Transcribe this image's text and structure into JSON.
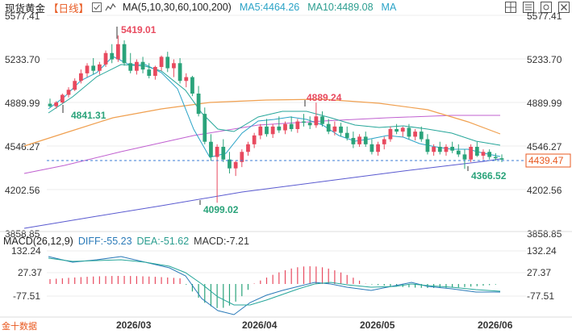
{
  "header": {
    "title": "现货黄金",
    "period": "【日线】",
    "ma_label": "MA(5,10,30,60,100,200)",
    "ma5": "MA5:4464.26",
    "ma10": "MA10:4489.08",
    "ma_extra": "MA"
  },
  "toolbar": {
    "icons": [
      "grid-icon",
      "list-icon",
      "settings-icon",
      "close-icon"
    ]
  },
  "price_axis": {
    "left_labels": [
      "5577.41",
      "5233.70",
      "4889.99",
      "4546.27",
      "4202.56",
      "3858.85"
    ],
    "right_labels": [
      "5577.41",
      "5233.70",
      "4889.99",
      "4546.27",
      "4202.56",
      "3858.85"
    ],
    "current_price": "4439.47"
  },
  "annotations": {
    "high": "5419.01",
    "mid_high": "4889.24",
    "low_left": "4841.31",
    "low_main": "4099.02",
    "low_recent": "4366.52"
  },
  "macd": {
    "title": "MACD(26,12,9)",
    "diff": "DIFF:-55.23",
    "dea": "DEA:-51.62",
    "macd": "MACD:-7.21",
    "left_labels": [
      "132.24",
      "27.37",
      "-77.51"
    ],
    "right_labels": [
      "132.24",
      "27.37",
      "-77.51"
    ]
  },
  "x_axis": {
    "labels": [
      "2026/03",
      "2026/04",
      "2026/05",
      "2026/06"
    ]
  },
  "watermark": "金十数据",
  "colors": {
    "up": "#e84a5f",
    "down": "#2aa37a",
    "ma5": "#2aa3c7",
    "ma10": "#26a69a",
    "ma_orange": "#f0a050",
    "ma_purple": "#c060d0",
    "ma_blue": "#5a5ad0",
    "accent": "#e8581f"
  },
  "chart_data": {
    "type": "candlestick",
    "ylim": [
      3858.85,
      5577.41
    ],
    "x_ticks": [
      "2026/03",
      "2026/04",
      "2026/05",
      "2026/06"
    ],
    "candles": [
      [
        4880,
        4920,
        4850,
        4860
      ],
      [
        4860,
        4900,
        4841,
        4890
      ],
      [
        4890,
        4960,
        4880,
        4950
      ],
      [
        4950,
        5010,
        4930,
        4990
      ],
      [
        4990,
        5080,
        4980,
        5060
      ],
      [
        5060,
        5150,
        5040,
        5120
      ],
      [
        5120,
        5200,
        5090,
        5180
      ],
      [
        5180,
        5240,
        5110,
        5140
      ],
      [
        5140,
        5210,
        5110,
        5190
      ],
      [
        5190,
        5300,
        5170,
        5280
      ],
      [
        5280,
        5350,
        5200,
        5230
      ],
      [
        5230,
        5419,
        5210,
        5350
      ],
      [
        5350,
        5380,
        5180,
        5200
      ],
      [
        5200,
        5280,
        5120,
        5140
      ],
      [
        5140,
        5230,
        5110,
        5210
      ],
      [
        5210,
        5250,
        5120,
        5150
      ],
      [
        5150,
        5200,
        5080,
        5100
      ],
      [
        5100,
        5180,
        5070,
        5170
      ],
      [
        5170,
        5260,
        5140,
        5250
      ],
      [
        5250,
        5290,
        5130,
        5160
      ],
      [
        5160,
        5230,
        5090,
        5200
      ],
      [
        5200,
        5240,
        5040,
        5060
      ],
      [
        5060,
        5120,
        5010,
        5090
      ],
      [
        5090,
        5100,
        4940,
        4960
      ],
      [
        4960,
        5020,
        4780,
        4800
      ],
      [
        4800,
        4850,
        4560,
        4580
      ],
      [
        4580,
        4640,
        4430,
        4460
      ],
      [
        4460,
        4560,
        4099,
        4540
      ],
      [
        4540,
        4600,
        4420,
        4440
      ],
      [
        4440,
        4500,
        4330,
        4370
      ],
      [
        4370,
        4430,
        4310,
        4420
      ],
      [
        4420,
        4520,
        4380,
        4500
      ],
      [
        4500,
        4580,
        4470,
        4560
      ],
      [
        4560,
        4650,
        4530,
        4630
      ],
      [
        4630,
        4720,
        4600,
        4700
      ],
      [
        4700,
        4760,
        4620,
        4640
      ],
      [
        4640,
        4720,
        4610,
        4700
      ],
      [
        4700,
        4780,
        4650,
        4670
      ],
      [
        4670,
        4740,
        4640,
        4720
      ],
      [
        4720,
        4780,
        4660,
        4680
      ],
      [
        4680,
        4760,
        4650,
        4740
      ],
      [
        4740,
        4800,
        4700,
        4730
      ],
      [
        4730,
        4780,
        4680,
        4710
      ],
      [
        4710,
        4889,
        4690,
        4780
      ],
      [
        4780,
        4820,
        4700,
        4720
      ],
      [
        4720,
        4760,
        4640,
        4660
      ],
      [
        4660,
        4740,
        4630,
        4700
      ],
      [
        4700,
        4730,
        4620,
        4650
      ],
      [
        4650,
        4700,
        4590,
        4610
      ],
      [
        4610,
        4660,
        4530,
        4560
      ],
      [
        4560,
        4640,
        4540,
        4620
      ],
      [
        4620,
        4660,
        4540,
        4560
      ],
      [
        4560,
        4600,
        4480,
        4500
      ],
      [
        4500,
        4580,
        4470,
        4560
      ],
      [
        4560,
        4620,
        4520,
        4600
      ],
      [
        4600,
        4700,
        4580,
        4680
      ],
      [
        4680,
        4720,
        4640,
        4660
      ],
      [
        4660,
        4700,
        4620,
        4690
      ],
      [
        4690,
        4720,
        4600,
        4620
      ],
      [
        4620,
        4680,
        4590,
        4660
      ],
      [
        4660,
        4700,
        4580,
        4600
      ],
      [
        4600,
        4640,
        4480,
        4500
      ],
      [
        4500,
        4560,
        4470,
        4540
      ],
      [
        4540,
        4580,
        4480,
        4500
      ],
      [
        4500,
        4560,
        4470,
        4540
      ],
      [
        4540,
        4580,
        4490,
        4510
      ],
      [
        4510,
        4560,
        4460,
        4480
      ],
      [
        4480,
        4520,
        4366,
        4440
      ],
      [
        4440,
        4560,
        4420,
        4540
      ],
      [
        4540,
        4580,
        4460,
        4470
      ],
      [
        4470,
        4520,
        4440,
        4500
      ],
      [
        4500,
        4520,
        4440,
        4460
      ],
      [
        4460,
        4490,
        4430,
        4450
      ],
      [
        4450,
        4480,
        4420,
        4439
      ]
    ]
  }
}
